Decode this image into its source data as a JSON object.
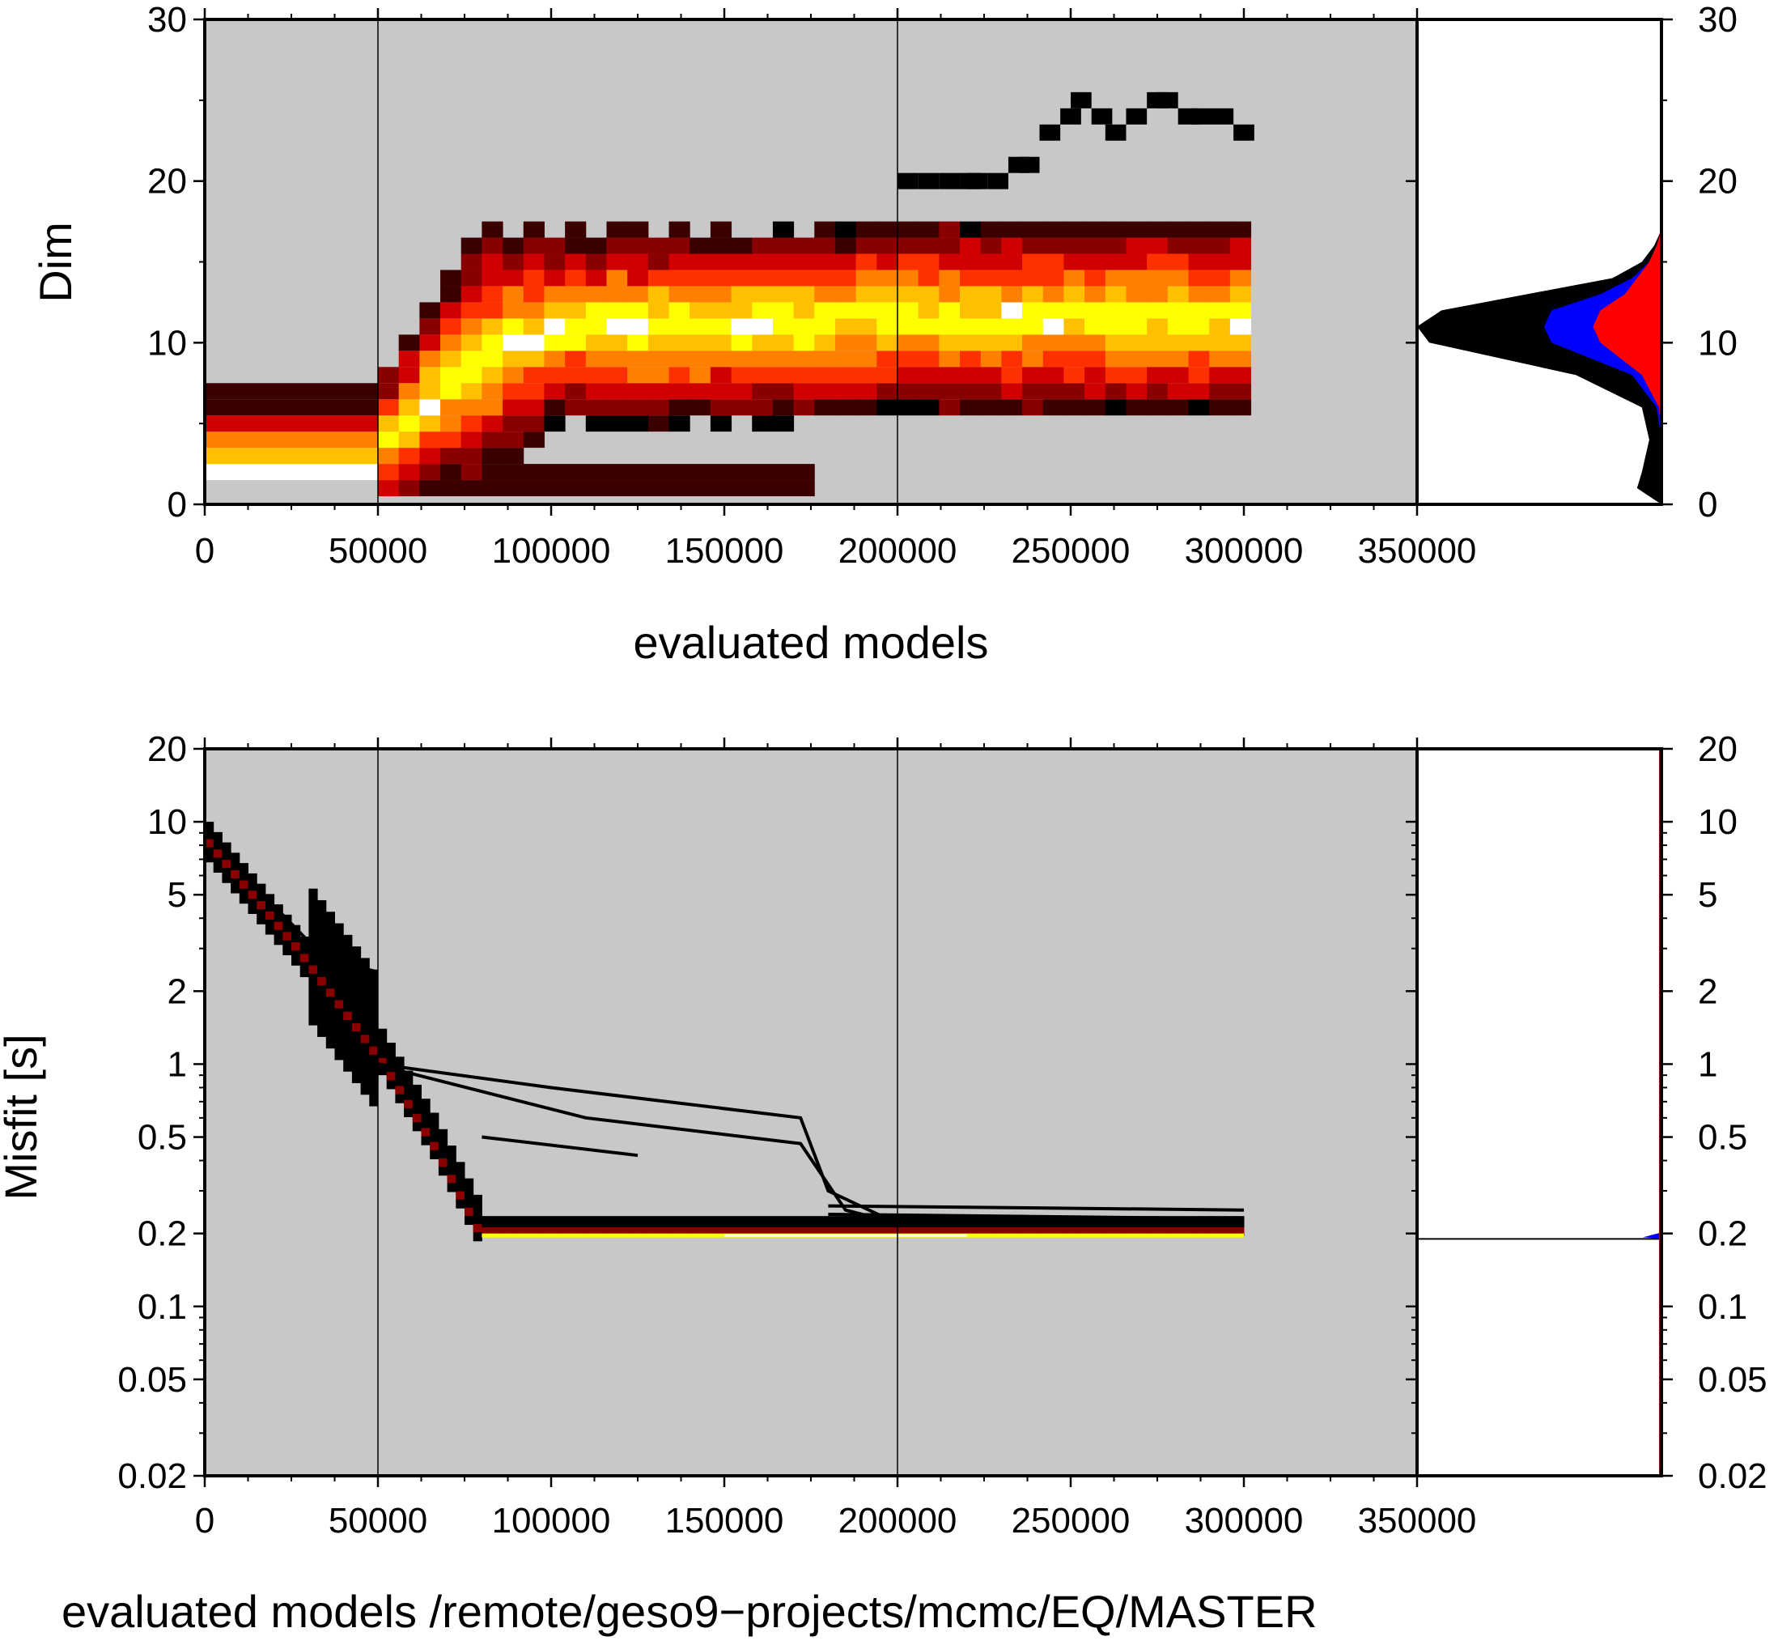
{
  "colors": {
    "background": "#c8c8c8",
    "heat": [
      "#000000",
      "#3a0000",
      "#8a0000",
      "#d00000",
      "#ff3000",
      "#ff8000",
      "#ffc000",
      "#ffff00",
      "#ffffff"
    ],
    "marginal_total": "#000000",
    "marginal_mid": "#0000ff",
    "marginal_best": "#ff0000"
  },
  "chart_data": [
    {
      "type": "heatmap",
      "title": "",
      "xlabel": "evaluated models",
      "ylabel": "Dim",
      "xlim": [
        0,
        350000
      ],
      "ylim": [
        0,
        30
      ],
      "xticks": [
        "0",
        "50000",
        "100000",
        "150000",
        "200000",
        "250000",
        "300000",
        "350000"
      ],
      "yticks": [
        "0",
        "10",
        "20",
        "30"
      ],
      "vertical_lines": [
        50000,
        200000
      ],
      "grid": false,
      "burnin_band": [
        {
          "dim": 2,
          "level": 8
        },
        {
          "dim": 3,
          "level": 6
        },
        {
          "dim": 4,
          "level": 5
        },
        {
          "dim": 5,
          "level": 3
        },
        {
          "dim": 6,
          "level": 1
        },
        {
          "dim": 7,
          "level": 0.5
        }
      ],
      "trace": [
        {
          "x": 50000,
          "dim_center": 4,
          "dim_spread": 3
        },
        {
          "x": 75000,
          "dim_center": 9,
          "dim_spread": 5
        },
        {
          "x": 100000,
          "dim_center": 11,
          "dim_spread": 4
        },
        {
          "x": 150000,
          "dim_center": 11,
          "dim_spread": 4
        },
        {
          "x": 200000,
          "dim_center": 11.5,
          "dim_spread": 4
        },
        {
          "x": 300000,
          "dim_center": 11.5,
          "dim_spread": 4
        }
      ],
      "outlier_chain": [
        {
          "x": 200000,
          "y": 20
        },
        {
          "x": 220000,
          "y": 20
        },
        {
          "x": 235000,
          "y": 21
        },
        {
          "x": 250000,
          "y": 25
        },
        {
          "x": 260000,
          "y": 23
        },
        {
          "x": 275000,
          "y": 25
        },
        {
          "x": 285000,
          "y": 24
        },
        {
          "x": 300000,
          "y": 23
        }
      ],
      "marginal": {
        "dims": [
          0,
          1,
          2,
          4,
          6,
          8,
          10,
          11,
          12,
          13,
          14,
          15,
          16,
          17
        ],
        "total": [
          0,
          0.1,
          0.08,
          0.05,
          0.08,
          0.35,
          0.95,
          1.0,
          0.9,
          0.55,
          0.2,
          0.08,
          0.03,
          0
        ],
        "mid": [
          0,
          0,
          0,
          0,
          0.02,
          0.12,
          0.45,
          0.48,
          0.45,
          0.25,
          0.12,
          0.05,
          0.02,
          0
        ],
        "best": [
          0,
          0,
          0,
          0,
          0.01,
          0.08,
          0.25,
          0.28,
          0.25,
          0.15,
          0.1,
          0.05,
          0.02,
          0
        ]
      }
    },
    {
      "type": "heatmap",
      "title": "",
      "xlabel": "evaluated models /remote/geso9−projects/mcmc/EQ/MASTER",
      "ylabel": "Misfit [s]",
      "xlim": [
        0,
        350000
      ],
      "ylim": [
        0.02,
        20
      ],
      "yscale": "log",
      "xticks": [
        "0",
        "50000",
        "100000",
        "150000",
        "200000",
        "250000",
        "300000",
        "350000"
      ],
      "yticks": [
        "0.02",
        "0.05",
        "0.1",
        "0.2",
        "0.5",
        "1",
        "2",
        "5",
        "10",
        "20"
      ],
      "yticks_right": [
        "0.02",
        "0.05",
        "0.1",
        "0.2",
        "0.5",
        "1",
        "2",
        "5",
        "10",
        "20"
      ],
      "vertical_lines": [
        50000,
        200000
      ],
      "grid": false,
      "main_trace": [
        {
          "x": 0,
          "y": 8
        },
        {
          "x": 25000,
          "y": 3
        },
        {
          "x": 50000,
          "y": 1
        },
        {
          "x": 65000,
          "y": 0.45
        },
        {
          "x": 78000,
          "y": 0.2
        },
        {
          "x": 300000,
          "y": 0.2
        }
      ],
      "side_chains": [
        [
          {
            "x": 20000,
            "y": 4.5
          },
          {
            "x": 35000,
            "y": 2.7
          },
          {
            "x": 50000,
            "y": 2.4
          }
        ],
        [
          {
            "x": 50000,
            "y": 1.0
          },
          {
            "x": 100000,
            "y": 0.8
          },
          {
            "x": 172000,
            "y": 0.6
          },
          {
            "x": 180000,
            "y": 0.3
          },
          {
            "x": 200000,
            "y": 0.22
          }
        ],
        [
          {
            "x": 55000,
            "y": 0.95
          },
          {
            "x": 110000,
            "y": 0.6
          },
          {
            "x": 172000,
            "y": 0.47
          },
          {
            "x": 185000,
            "y": 0.25
          },
          {
            "x": 200000,
            "y": 0.22
          }
        ],
        [
          {
            "x": 80000,
            "y": 0.5
          },
          {
            "x": 125000,
            "y": 0.42
          }
        ],
        [
          {
            "x": 180000,
            "y": 0.26
          },
          {
            "x": 300000,
            "y": 0.25
          }
        ],
        [
          {
            "x": 180000,
            "y": 0.24
          },
          {
            "x": 300000,
            "y": 0.23
          }
        ]
      ],
      "marginal": {
        "misfit": 0.19,
        "peak": 0.19
      }
    }
  ]
}
